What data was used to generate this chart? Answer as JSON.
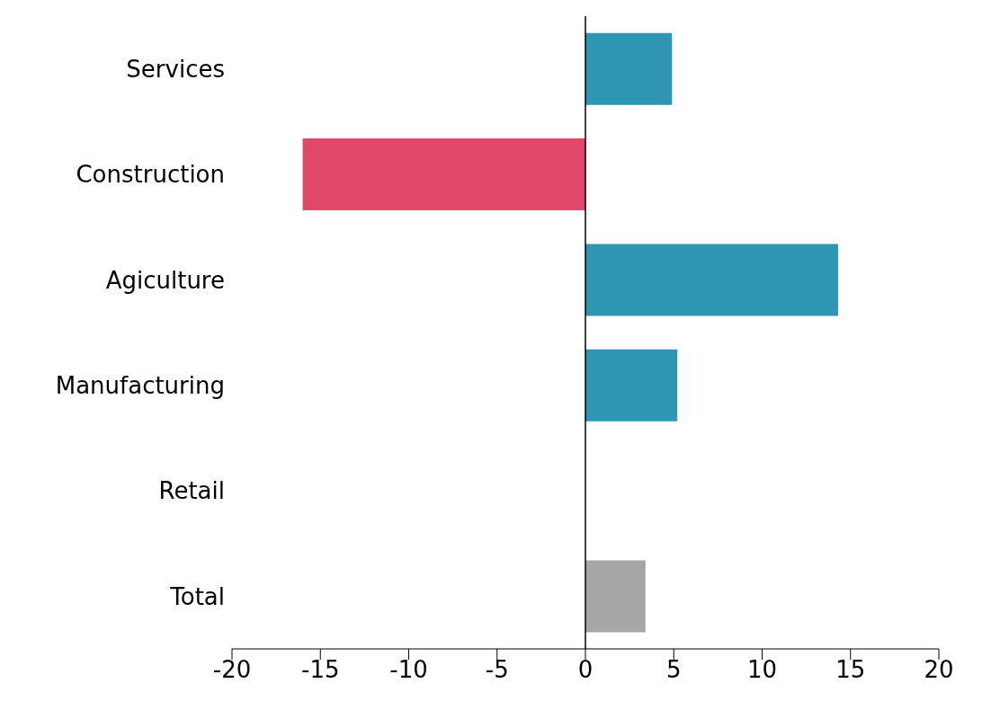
{
  "chart_data": {
    "type": "bar",
    "orientation": "horizontal",
    "categories": [
      "Services",
      "Construction",
      "Agiculture",
      "Manufacturing",
      "Retail",
      "Total"
    ],
    "values": [
      4.9,
      -16,
      14.3,
      5.2,
      0,
      3.4
    ],
    "colors": [
      "#2e96b3",
      "#e0476a",
      "#2e96b3",
      "#2e96b3",
      "#2e96b3",
      "#a6a6a6"
    ],
    "xlim": [
      -20,
      20
    ],
    "xticks": [
      -20,
      -15,
      -10,
      -5,
      0,
      5,
      10,
      15,
      20
    ]
  }
}
